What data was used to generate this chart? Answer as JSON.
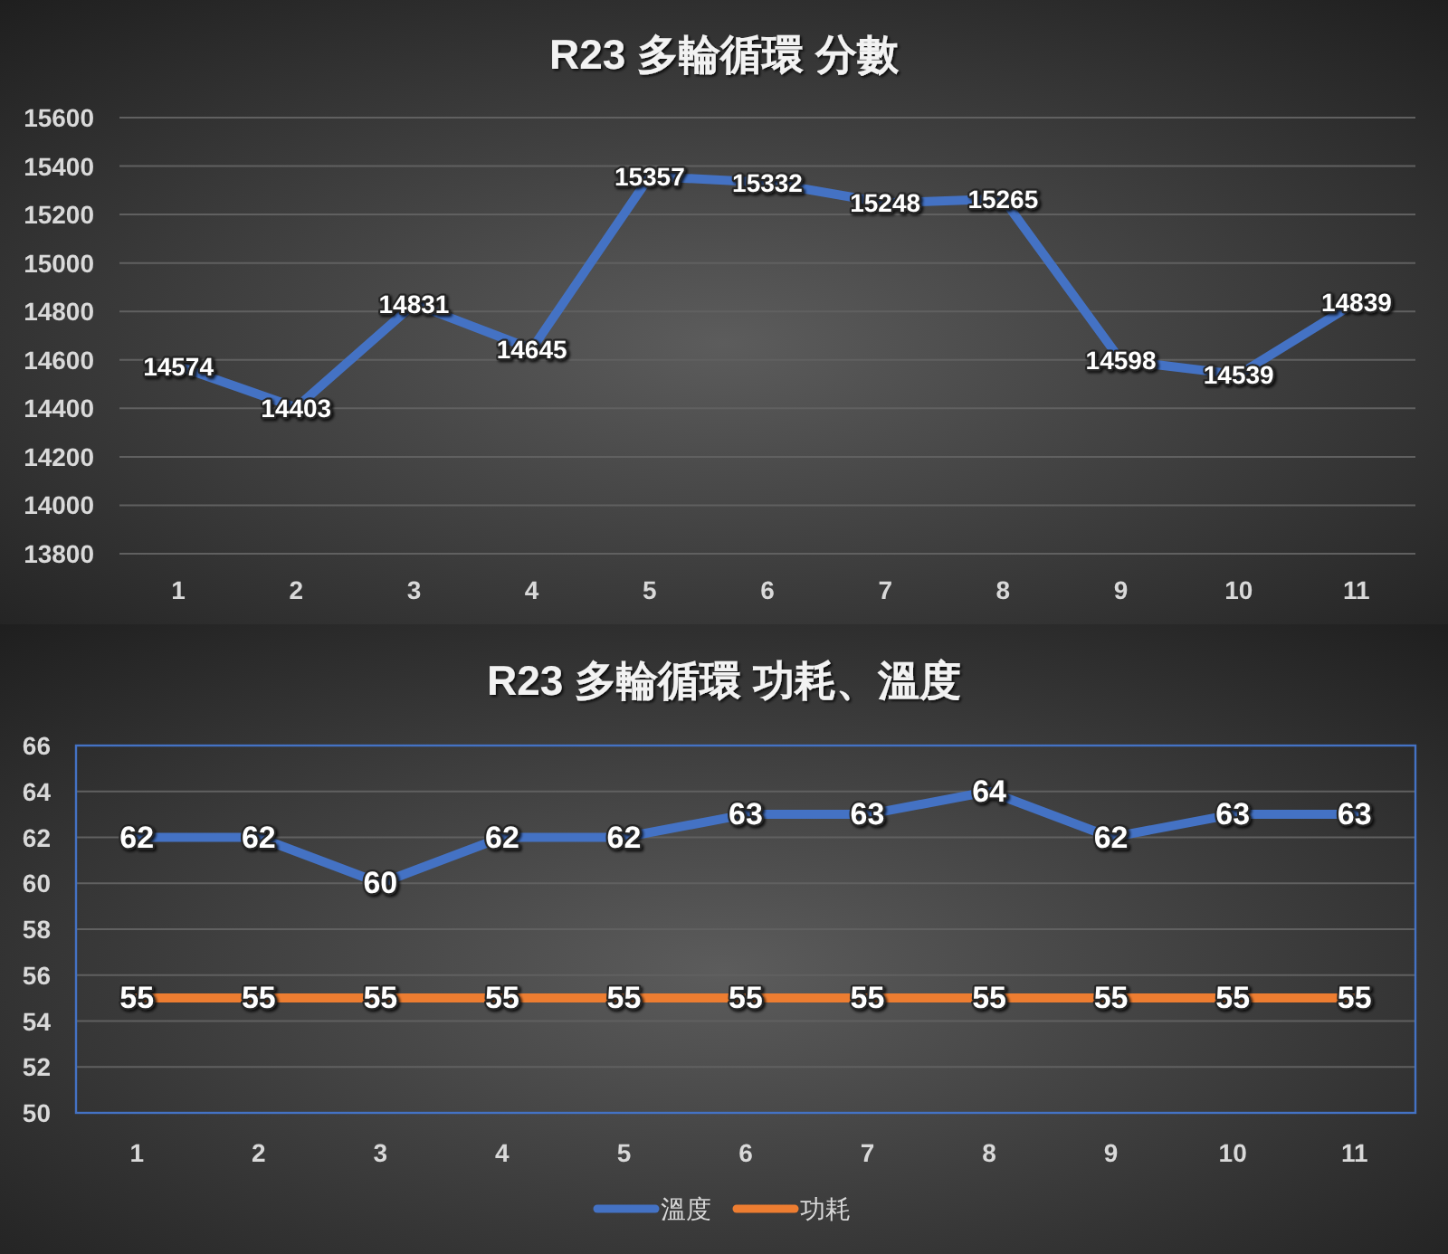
{
  "chart_data": [
    {
      "type": "line",
      "title": "R23 多輪循環 分數",
      "categories": [
        "1",
        "2",
        "3",
        "4",
        "5",
        "6",
        "7",
        "8",
        "9",
        "10",
        "11"
      ],
      "series": [
        {
          "color": "#4472c4",
          "values": [
            14574,
            14403,
            14831,
            14645,
            15357,
            15332,
            15248,
            15265,
            14598,
            14539,
            14839
          ]
        }
      ],
      "ylim": [
        13800,
        15600
      ],
      "yticks": [
        13800,
        14000,
        14200,
        14400,
        14600,
        14800,
        15000,
        15200,
        15400,
        15600
      ],
      "grid": "y",
      "data_labels": true,
      "legend": false
    },
    {
      "type": "line",
      "title": "R23 多輪循環 功耗、溫度",
      "categories": [
        "1",
        "2",
        "3",
        "4",
        "5",
        "6",
        "7",
        "8",
        "9",
        "10",
        "11"
      ],
      "series": [
        {
          "name": "溫度",
          "color": "#4472c4",
          "values": [
            62,
            62,
            60,
            62,
            62,
            63,
            63,
            64,
            62,
            63,
            63
          ]
        },
        {
          "name": "功耗",
          "color": "#ed7d31",
          "values": [
            55,
            55,
            55,
            55,
            55,
            55,
            55,
            55,
            55,
            55,
            55
          ]
        }
      ],
      "ylim": [
        50,
        66
      ],
      "yticks": [
        50,
        52,
        54,
        56,
        58,
        60,
        62,
        64,
        66
      ],
      "grid": "y",
      "data_labels": true,
      "legend": "bottom"
    }
  ]
}
